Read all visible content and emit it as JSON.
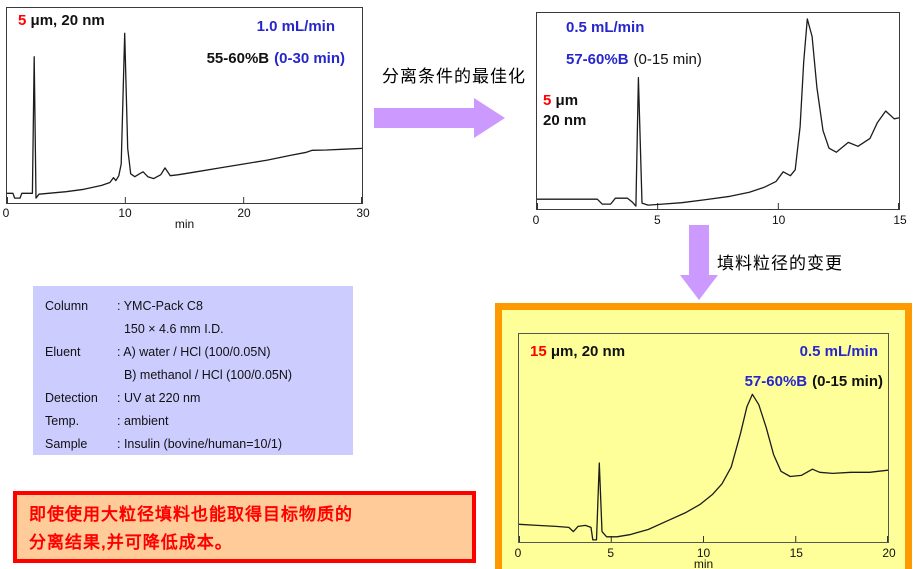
{
  "colors": {
    "accent-blue": "#2626cc",
    "accent-red": "#ff0000",
    "arrow": "#cc99ff",
    "lavender": "#ccccff",
    "yellow": "#ffff99",
    "orange": "#ff9900",
    "peach": "#ffcc99",
    "trace": "#1c1c1c"
  },
  "arrow_right": {
    "label": "分离条件的最佳化"
  },
  "arrow_down": {
    "label": "填料粒径的变更"
  },
  "info": {
    "rows": [
      {
        "label": "Column",
        "value": ": YMC-Pack C8"
      },
      {
        "label": "",
        "value": "  150 × 4.6 mm I.D."
      },
      {
        "label": "Eluent",
        "value": ": A) water / HCl (100/0.05N)"
      },
      {
        "label": "",
        "value": "  B) methanol / HCl (100/0.05N)"
      },
      {
        "label": "Detection",
        "value": ": UV at 220 nm"
      },
      {
        "label": "Temp.",
        "value": ": ambient"
      },
      {
        "label": "Sample",
        "value": ": Insulin (bovine/human=10/1)"
      }
    ]
  },
  "conclusion": {
    "line1": "即使使用大粒径填料也能取得目标物质的",
    "line2": "分离结果,并可降低成本。"
  },
  "chart_data": [
    {
      "type": "line",
      "panel": "top-left",
      "particle_label": {
        "highlight": "5",
        "rest": " μm, 20 nm"
      },
      "flow_rate": "1.0 mL/min",
      "gradient": {
        "pct": "55-60%B",
        "range": "(0-30 min)"
      },
      "xlabel": "min",
      "xlim": [
        0,
        30
      ],
      "xticks": [
        0,
        10,
        20,
        30
      ],
      "ylim": [
        0,
        100
      ],
      "legend": "none",
      "grid": false,
      "trace": [
        [
          0,
          5
        ],
        [
          0.5,
          5
        ],
        [
          0.65,
          2.5
        ],
        [
          1.1,
          2.5
        ],
        [
          1.25,
          5
        ],
        [
          2.15,
          5
        ],
        [
          2.3,
          75
        ],
        [
          2.45,
          2.5
        ],
        [
          2.7,
          4.5
        ],
        [
          3.5,
          5
        ],
        [
          5,
          5.8
        ],
        [
          6.5,
          7
        ],
        [
          8,
          9
        ],
        [
          8.7,
          10.5
        ],
        [
          9.0,
          13
        ],
        [
          9.2,
          11.5
        ],
        [
          9.45,
          14
        ],
        [
          9.65,
          20
        ],
        [
          9.95,
          87
        ],
        [
          10.2,
          28
        ],
        [
          10.45,
          15
        ],
        [
          10.8,
          13.5
        ],
        [
          11.2,
          15
        ],
        [
          11.5,
          16
        ],
        [
          11.9,
          13.5
        ],
        [
          12.4,
          12.5
        ],
        [
          13.0,
          14.5
        ],
        [
          13.35,
          18
        ],
        [
          13.8,
          14
        ],
        [
          14.5,
          14.5
        ],
        [
          16,
          16
        ],
        [
          18,
          18
        ],
        [
          20,
          20
        ],
        [
          22,
          22
        ],
        [
          24,
          24.5
        ],
        [
          25.3,
          26
        ],
        [
          25.8,
          27
        ],
        [
          27,
          27.2
        ],
        [
          28.5,
          27.6
        ],
        [
          30,
          28
        ]
      ]
    },
    {
      "type": "line",
      "panel": "top-right",
      "flow_rate": "0.5 mL/min",
      "gradient": {
        "pct": "57-60%B",
        "range": "(0-15 min)"
      },
      "particle_label": {
        "highlight": "5",
        "rest": " μm"
      },
      "particle_label2": "20 nm",
      "xlabel": "",
      "xlim": [
        0,
        15
      ],
      "xticks": [
        0,
        5,
        10,
        15
      ],
      "ylim": [
        0,
        100
      ],
      "legend": "none",
      "grid": false,
      "trace": [
        [
          0,
          5
        ],
        [
          0.8,
          5
        ],
        [
          1.6,
          5
        ],
        [
          2.5,
          5
        ],
        [
          2.7,
          2.5
        ],
        [
          3.05,
          2.5
        ],
        [
          3.25,
          5.5
        ],
        [
          3.75,
          5.5
        ],
        [
          3.95,
          3.5
        ],
        [
          4.1,
          1.5
        ],
        [
          4.2,
          67
        ],
        [
          4.35,
          3
        ],
        [
          4.6,
          2
        ],
        [
          5.2,
          2.5
        ],
        [
          6,
          3.2
        ],
        [
          7,
          4.8
        ],
        [
          8,
          6.5
        ],
        [
          8.8,
          8.5
        ],
        [
          9.4,
          11
        ],
        [
          9.9,
          14
        ],
        [
          10.2,
          19
        ],
        [
          10.5,
          17
        ],
        [
          10.7,
          20
        ],
        [
          10.9,
          42
        ],
        [
          11.05,
          75
        ],
        [
          11.2,
          97
        ],
        [
          11.4,
          88
        ],
        [
          11.6,
          62
        ],
        [
          11.85,
          40
        ],
        [
          12.1,
          31
        ],
        [
          12.4,
          29
        ],
        [
          12.9,
          34
        ],
        [
          13.3,
          32
        ],
        [
          13.8,
          36
        ],
        [
          14.1,
          44
        ],
        [
          14.45,
          50
        ],
        [
          14.8,
          46
        ],
        [
          15,
          46.5
        ]
      ]
    },
    {
      "type": "line",
      "panel": "bottom-right",
      "particle_label": {
        "highlight": "15",
        "rest": " μm, 20 nm"
      },
      "flow_rate": "0.5 mL/min",
      "gradient": {
        "pct": "57-60%B",
        "range": "(0-15 min)"
      },
      "xlabel": "min",
      "xlim": [
        0,
        20
      ],
      "xticks": [
        0,
        5,
        10,
        15,
        20
      ],
      "ylim": [
        0,
        100
      ],
      "legend": "none",
      "grid": false,
      "trace": [
        [
          0,
          8.5
        ],
        [
          1,
          8
        ],
        [
          2,
          7.5
        ],
        [
          2.7,
          7
        ],
        [
          2.95,
          5
        ],
        [
          3.2,
          7.5
        ],
        [
          3.6,
          8
        ],
        [
          3.9,
          7
        ],
        [
          4.0,
          1
        ],
        [
          4.2,
          1
        ],
        [
          4.35,
          38
        ],
        [
          4.5,
          5
        ],
        [
          4.75,
          2.5
        ],
        [
          5.3,
          2.5
        ],
        [
          6,
          3.5
        ],
        [
          7,
          6
        ],
        [
          8,
          10
        ],
        [
          9,
          14
        ],
        [
          9.8,
          18
        ],
        [
          10.5,
          23
        ],
        [
          11,
          28
        ],
        [
          11.5,
          36
        ],
        [
          12,
          52
        ],
        [
          12.35,
          65
        ],
        [
          12.65,
          71
        ],
        [
          13,
          66
        ],
        [
          13.4,
          55
        ],
        [
          13.8,
          42
        ],
        [
          14.2,
          34
        ],
        [
          14.7,
          31.5
        ],
        [
          15.3,
          32
        ],
        [
          15.9,
          35
        ],
        [
          16.3,
          33.5
        ],
        [
          17,
          33
        ],
        [
          18,
          33.5
        ],
        [
          19,
          33.5
        ],
        [
          20,
          34.5
        ]
      ]
    }
  ]
}
